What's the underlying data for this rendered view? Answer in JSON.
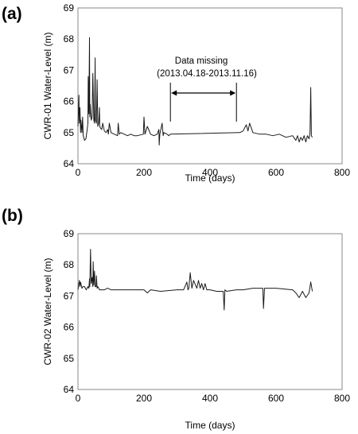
{
  "chart_data": [
    {
      "type": "line",
      "panel_label": "(a)",
      "xlabel": "Time (days)",
      "ylabel": "CWR-01 Water-Level (m)",
      "xlim": [
        0,
        800
      ],
      "ylim": [
        64,
        69
      ],
      "xticks": [
        "0",
        "200",
        "400",
        "600",
        "800"
      ],
      "yticks": [
        "64",
        "65",
        "66",
        "67",
        "68",
        "69"
      ],
      "grid": false,
      "annotation": {
        "line1": "Data missing",
        "line2": "(2013.04.18-2013.11.16)",
        "gap_start": 280,
        "gap_end": 480
      },
      "series": [
        {
          "x": [
            0,
            3,
            4,
            6,
            8,
            9,
            12,
            14,
            16,
            20,
            24,
            28,
            30,
            31,
            33,
            35,
            36,
            37,
            40,
            43,
            45,
            48,
            50,
            52,
            53,
            56,
            58,
            60,
            63,
            65,
            66,
            68,
            72,
            75,
            80,
            85,
            90,
            92,
            95,
            100,
            110,
            120,
            122,
            125,
            130,
            140,
            150,
            160,
            170,
            180,
            198,
            200,
            203,
            210,
            220,
            230,
            240,
            245,
            246,
            248,
            255,
            258,
            260,
            270,
            275,
            280,
            490,
            500,
            510,
            515,
            520,
            530,
            550,
            570,
            590,
            610,
            630,
            650,
            660,
            665,
            670,
            675,
            680,
            685,
            690,
            695,
            700,
            703,
            705,
            707,
            710
          ],
          "y": [
            65.2,
            66.2,
            65.3,
            65.8,
            65.0,
            65.4,
            65.0,
            65.5,
            64.9,
            64.75,
            64.8,
            65.1,
            65.3,
            66.8,
            65.6,
            68.05,
            65.5,
            65.9,
            65.4,
            65.5,
            66.9,
            65.4,
            65.3,
            67.4,
            65.4,
            65.3,
            66.7,
            65.2,
            65.3,
            65.8,
            65.2,
            65.15,
            65.1,
            65.3,
            65.05,
            65.0,
            65.1,
            64.95,
            65.3,
            65.0,
            64.95,
            64.9,
            65.3,
            64.95,
            65.0,
            64.95,
            64.9,
            64.95,
            64.9,
            64.9,
            64.95,
            65.5,
            64.95,
            65.2,
            64.95,
            64.9,
            64.95,
            65.1,
            64.6,
            64.95,
            65.3,
            64.9,
            65.0,
            64.95,
            64.9,
            64.95,
            65.0,
            65.05,
            65.25,
            65.05,
            65.3,
            65.0,
            64.95,
            64.95,
            64.9,
            64.95,
            64.85,
            64.9,
            64.75,
            64.9,
            64.7,
            64.85,
            64.75,
            64.9,
            64.7,
            64.9,
            64.8,
            65.0,
            66.45,
            64.9,
            64.85
          ]
        }
      ]
    },
    {
      "type": "line",
      "panel_label": "(b)",
      "xlabel": "Time (days)",
      "ylabel": "CWR-02 Water-Level (m)",
      "xlim": [
        0,
        800
      ],
      "ylim": [
        64,
        69
      ],
      "xticks": [
        "0",
        "200",
        "400",
        "600",
        "800"
      ],
      "yticks": [
        "64",
        "65",
        "66",
        "67",
        "68",
        "69"
      ],
      "grid": false,
      "series": [
        {
          "x": [
            0,
            4,
            6,
            8,
            12,
            15,
            20,
            25,
            30,
            33,
            35,
            36,
            38,
            40,
            43,
            45,
            46,
            48,
            50,
            52,
            55,
            56,
            58,
            60,
            63,
            65,
            70,
            80,
            90,
            100,
            120,
            150,
            180,
            200,
            210,
            220,
            250,
            300,
            320,
            330,
            333,
            336,
            340,
            345,
            350,
            360,
            365,
            370,
            375,
            380,
            385,
            390,
            400,
            420,
            440,
            443,
            445,
            450,
            480,
            500,
            530,
            560,
            562,
            565,
            600,
            650,
            660,
            670,
            680,
            690,
            700,
            705,
            710
          ],
          "y": [
            67.2,
            67.5,
            67.3,
            67.45,
            67.25,
            67.3,
            67.3,
            67.2,
            67.3,
            67.25,
            67.55,
            67.3,
            68.5,
            67.4,
            67.6,
            67.3,
            68.1,
            67.35,
            67.8,
            67.3,
            67.3,
            67.65,
            67.25,
            67.3,
            67.25,
            67.2,
            67.2,
            67.2,
            67.25,
            67.2,
            67.2,
            67.2,
            67.2,
            67.2,
            67.1,
            67.2,
            67.15,
            67.2,
            67.2,
            67.45,
            67.2,
            67.25,
            67.75,
            67.25,
            67.5,
            67.25,
            67.5,
            67.25,
            67.4,
            67.2,
            67.4,
            67.2,
            67.2,
            67.15,
            67.15,
            66.55,
            67.2,
            67.15,
            67.2,
            67.2,
            67.25,
            67.25,
            66.6,
            67.25,
            67.25,
            67.2,
            67.1,
            66.95,
            67.15,
            66.95,
            67.1,
            67.45,
            67.15
          ]
        }
      ]
    }
  ]
}
